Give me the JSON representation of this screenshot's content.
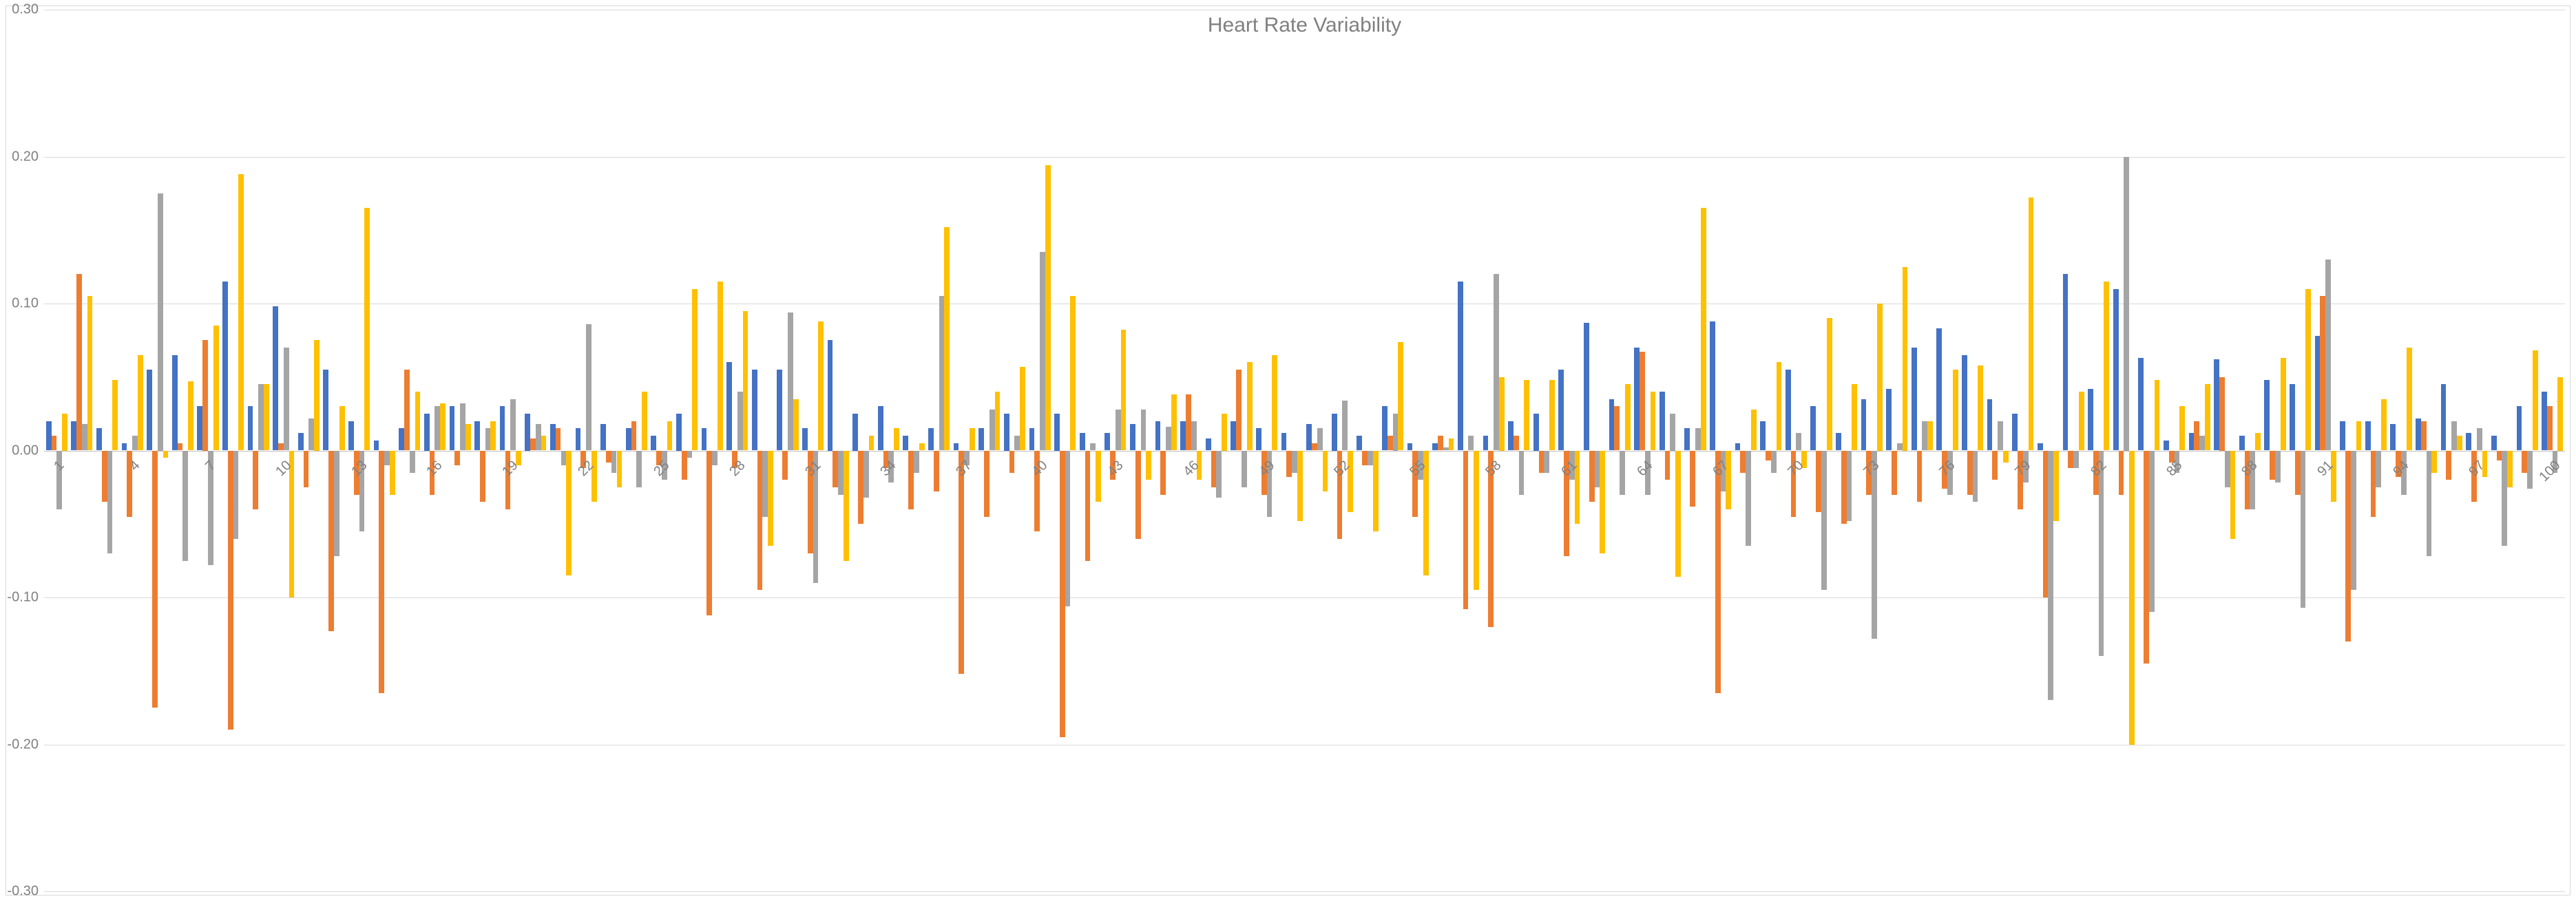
{
  "chart": {
    "type": "bar",
    "title": "Heart Rate Variability",
    "title_fontsize": 30,
    "title_color": "#808080",
    "background_color": "#ffffff",
    "border_color": "#d9d9d9",
    "grid_color": "#d9d9d9",
    "baseline_color": "#bfbfbf",
    "axis_font_color": "#808080",
    "axis_fontsize": 20,
    "ylim": [
      -0.3,
      0.3
    ],
    "ytick_step": 0.1,
    "yticks": [
      "-0.30",
      "-0.20",
      "-0.10",
      "0.00",
      "0.10",
      "0.20",
      "0.30"
    ],
    "xtick_step": 3,
    "x_count": 100,
    "series_colors": [
      "#4472c4",
      "#ed7d31",
      "#a5a5a5",
      "#ffc000"
    ],
    "bar_group_gap": 0.15,
    "data": {
      "s1_blue": [
        0.02,
        0.02,
        0.015,
        0.005,
        0.055,
        0.065,
        0.03,
        0.115,
        0.03,
        0.098,
        0.012,
        0.055,
        0.02,
        0.007,
        0.015,
        0.025,
        0.03,
        0.02,
        0.03,
        0.025,
        0.018,
        0.015,
        0.018,
        0.015,
        0.01,
        0.025,
        0.015,
        0.06,
        0.055,
        0.055,
        0.015,
        0.075,
        0.025,
        0.03,
        0.01,
        0.015,
        0.005,
        0.015,
        0.025,
        0.015,
        0.025,
        0.012,
        0.012,
        0.018,
        0.02,
        0.02,
        0.008,
        0.02,
        0.015,
        0.012,
        0.018,
        0.025,
        0.01,
        0.03,
        0.005,
        0.005,
        0.115,
        0.01,
        0.02,
        0.025,
        0.055,
        0.087,
        0.035,
        0.07,
        0.04,
        0.015,
        0.088,
        0.005,
        0.02,
        0.055,
        0.03,
        0.012,
        0.035,
        0.042,
        0.07,
        0.083,
        0.065,
        0.035,
        0.025,
        0.005,
        0.12,
        0.042,
        0.11,
        0.063,
        0.007,
        0.012,
        0.062,
        0.01,
        0.048,
        0.045,
        0.078,
        0.02,
        0.02,
        0.018,
        0.022,
        0.045,
        0.012,
        0.01,
        0.03,
        0.04
      ],
      "s2_orange": [
        0.01,
        0.12,
        -0.035,
        -0.045,
        -0.175,
        0.005,
        0.075,
        -0.19,
        -0.04,
        0.005,
        -0.025,
        -0.123,
        -0.03,
        -0.165,
        0.055,
        -0.03,
        -0.01,
        -0.035,
        -0.04,
        0.008,
        0.015,
        -0.012,
        -0.008,
        0.02,
        -0.01,
        -0.02,
        -0.112,
        -0.012,
        -0.095,
        -0.02,
        -0.07,
        -0.025,
        -0.05,
        -0.012,
        -0.04,
        -0.028,
        -0.152,
        -0.045,
        -0.015,
        -0.055,
        -0.195,
        -0.075,
        -0.02,
        -0.06,
        -0.03,
        0.038,
        -0.025,
        0.055,
        -0.03,
        -0.018,
        0.005,
        -0.06,
        -0.01,
        0.01,
        -0.045,
        0.01,
        -0.108,
        -0.12,
        0.01,
        -0.015,
        -0.072,
        -0.035,
        0.03,
        0.067,
        -0.02,
        -0.038,
        -0.165,
        -0.015,
        -0.007,
        -0.045,
        -0.042,
        -0.05,
        -0.03,
        -0.03,
        -0.035,
        -0.026,
        -0.03,
        -0.02,
        -0.04,
        -0.1,
        -0.012,
        -0.03,
        -0.03,
        -0.145,
        -0.008,
        0.02,
        0.05,
        -0.04,
        -0.02,
        -0.03,
        0.105,
        -0.13,
        -0.045,
        -0.018,
        0.02,
        -0.02,
        -0.035,
        -0.007,
        -0.015,
        0.03
      ],
      "s3_gray": [
        -0.04,
        0.018,
        -0.07,
        0.01,
        0.175,
        -0.075,
        -0.078,
        -0.06,
        0.045,
        0.07,
        0.022,
        -0.072,
        -0.055,
        -0.01,
        -0.015,
        0.03,
        0.032,
        0.015,
        0.035,
        0.018,
        -0.01,
        0.086,
        -0.015,
        -0.025,
        -0.02,
        -0.005,
        -0.01,
        0.04,
        -0.045,
        0.094,
        -0.09,
        -0.03,
        -0.032,
        -0.022,
        -0.015,
        0.105,
        -0.01,
        0.028,
        0.01,
        0.135,
        -0.106,
        0.005,
        0.028,
        0.028,
        0.016,
        0.02,
        -0.032,
        -0.025,
        -0.045,
        -0.015,
        0.015,
        0.034,
        -0.01,
        0.025,
        -0.02,
        0.002,
        0.01,
        0.12,
        -0.03,
        -0.015,
        -0.02,
        -0.025,
        -0.03,
        -0.03,
        0.025,
        0.015,
        -0.028,
        -0.065,
        -0.015,
        0.012,
        -0.095,
        -0.048,
        -0.128,
        0.005,
        0.02,
        -0.03,
        -0.035,
        0.02,
        -0.022,
        -0.17,
        -0.012,
        -0.14,
        0.2,
        -0.11,
        -0.015,
        0.01,
        -0.025,
        -0.04,
        -0.022,
        -0.107,
        0.13,
        -0.095,
        -0.025,
        -0.03,
        -0.072,
        0.02,
        0.015,
        -0.065,
        -0.026,
        -0.015
      ],
      "s4_yellow": [
        0.025,
        0.105,
        0.048,
        0.065,
        -0.005,
        0.047,
        0.085,
        0.188,
        0.045,
        -0.1,
        0.075,
        0.03,
        0.165,
        -0.03,
        0.04,
        0.032,
        0.018,
        0.02,
        -0.01,
        0.01,
        -0.085,
        -0.035,
        -0.025,
        0.04,
        0.02,
        0.11,
        0.115,
        0.095,
        -0.065,
        0.035,
        0.088,
        -0.075,
        0.01,
        0.015,
        0.005,
        0.152,
        0.015,
        0.04,
        0.057,
        0.194,
        0.105,
        -0.035,
        0.082,
        -0.02,
        0.038,
        -0.02,
        0.025,
        0.06,
        0.065,
        -0.048,
        -0.028,
        -0.042,
        -0.055,
        0.074,
        -0.085,
        0.008,
        -0.095,
        0.05,
        0.048,
        0.048,
        -0.05,
        -0.07,
        0.045,
        0.04,
        -0.086,
        0.165,
        -0.04,
        0.028,
        0.06,
        -0.012,
        0.09,
        0.045,
        0.1,
        0.125,
        0.02,
        0.055,
        0.058,
        -0.008,
        0.172,
        -0.048,
        0.04,
        0.115,
        -0.2,
        0.048,
        0.03,
        0.045,
        -0.06,
        0.012,
        0.063,
        0.11,
        -0.035,
        0.02,
        0.035,
        0.07,
        -0.015,
        0.01,
        -0.018,
        -0.025,
        0.068,
        0.05
      ]
    }
  }
}
